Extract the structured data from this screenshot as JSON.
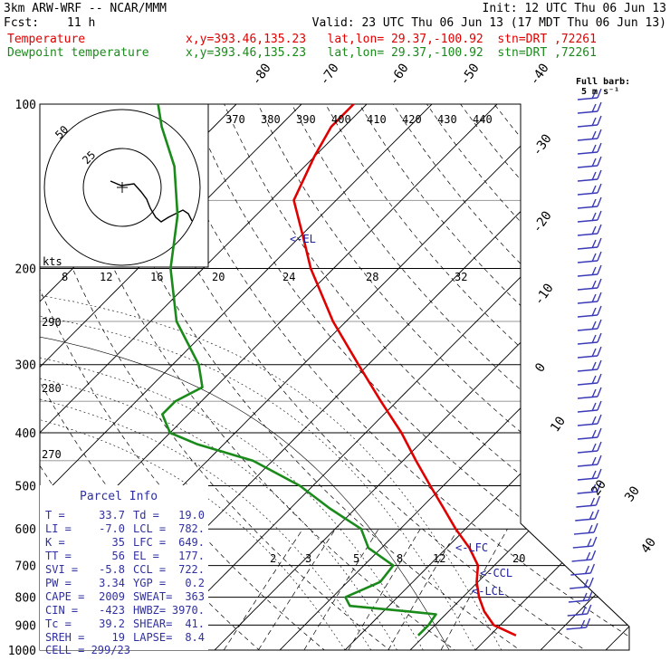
{
  "header": {
    "model": "3km ARW-WRF -- NCAR/MMM",
    "init": "Init: 12 UTC Thu 06 Jun 13",
    "fcst_label": "Fcst:",
    "fcst_value": "11 h",
    "valid": "Valid: 23 UTC Thu 06 Jun 13 (17 MDT Thu 06 Jun 13)",
    "temp_label": "Temperature",
    "temp_info": "x,y=393.46,135.23   lat,lon= 29.37,-100.92  stn=DRT ,72261",
    "dew_label": "Dewpoint temperature",
    "dew_info": "x,y=393.46,135.23   lat,lon= 29.37,-100.92  stn=DRT ,72261",
    "barb_label_1": "Full barb:",
    "barb_label_2": "5 m s⁻¹"
  },
  "colors": {
    "temperature": "#e00000",
    "dewpoint": "#1a8a1a",
    "parcel": "#000000",
    "barbs": "#3a3ab8",
    "el_label": "#2020a0"
  },
  "chart_data": {
    "type": "line",
    "subtype": "skew-T log-p",
    "yscale": "log",
    "ylim": [
      1000,
      100
    ],
    "isobars": [
      100,
      200,
      300,
      400,
      500,
      600,
      700,
      800,
      900,
      1000
    ],
    "isotherm_labels": [
      "-80",
      "-70",
      "-60",
      "-50",
      "-40",
      "-30",
      "-20",
      "-10",
      "0",
      "10",
      "20",
      "30",
      "40"
    ],
    "isotherm_values": [
      -80,
      -70,
      -60,
      -50,
      -40,
      -30,
      -20,
      -10,
      0,
      10,
      20,
      30,
      40
    ],
    "theta_labels": [
      "370",
      "380",
      "390",
      "400",
      "410",
      "420",
      "430",
      "440"
    ],
    "theta_side_labels": [
      "290",
      "280",
      "270"
    ],
    "mixing_ratio_labels": [
      "2",
      "3",
      "5",
      "8",
      "12",
      "20"
    ],
    "kts_scale_label": "kts",
    "kts_labels": [
      "8",
      "12",
      "16",
      "20",
      "24",
      "28",
      "32"
    ],
    "hodograph_rings": [
      "25",
      "50"
    ],
    "levels": [
      "EL",
      "LFC",
      "CCL",
      "LCL"
    ],
    "level_labels": {
      "EL": "<-EL",
      "LFC": "<-LFC",
      "CCL": "<-CCL",
      "LCL": "<-LCL"
    },
    "series": [
      {
        "name": "Temperature",
        "units": "C",
        "points": [
          [
            940,
            34.0
          ],
          [
            900,
            29.0
          ],
          [
            850,
            25.5
          ],
          [
            800,
            22.5
          ],
          [
            750,
            19.8
          ],
          [
            700,
            17.5
          ],
          [
            650,
            13.5
          ],
          [
            600,
            8.5
          ],
          [
            550,
            3.5
          ],
          [
            500,
            -2.0
          ],
          [
            450,
            -8.0
          ],
          [
            400,
            -14.5
          ],
          [
            350,
            -22.5
          ],
          [
            300,
            -31.5
          ],
          [
            250,
            -42.0
          ],
          [
            200,
            -53.5
          ],
          [
            175,
            -59.5
          ],
          [
            150,
            -66.5
          ],
          [
            125,
            -70.0
          ],
          [
            110,
            -72.0
          ],
          [
            100,
            -72.0
          ]
        ]
      },
      {
        "name": "Dewpoint temperature",
        "units": "C",
        "points": [
          [
            940,
            19.0
          ],
          [
            900,
            19.0
          ],
          [
            860,
            18.5
          ],
          [
            850,
            14.0
          ],
          [
            830,
            4.0
          ],
          [
            800,
            2.0
          ],
          [
            750,
            5.0
          ],
          [
            700,
            4.5
          ],
          [
            650,
            -2.0
          ],
          [
            600,
            -6.0
          ],
          [
            550,
            -14.0
          ],
          [
            500,
            -22.0
          ],
          [
            450,
            -33.0
          ],
          [
            420,
            -44.0
          ],
          [
            400,
            -50.0
          ],
          [
            370,
            -54.0
          ],
          [
            350,
            -54.0
          ],
          [
            330,
            -52.0
          ],
          [
            300,
            -56.0
          ],
          [
            250,
            -66.0
          ],
          [
            200,
            -75.0
          ],
          [
            160,
            -82.0
          ],
          [
            130,
            -90.0
          ],
          [
            110,
            -98.0
          ],
          [
            100,
            -102.0
          ]
        ]
      }
    ]
  },
  "parcel_info": {
    "title": "Parcel Info",
    "rows": [
      [
        "T   =",
        "33.7",
        "Td =",
        "19.0"
      ],
      [
        "LI  =",
        "-7.0",
        "LCL =",
        "782."
      ],
      [
        "K   =",
        "35",
        "LFC =",
        "649."
      ],
      [
        "TT  =",
        "56",
        "EL  =",
        "177."
      ],
      [
        "SVI =",
        "-5.8",
        "CCL =",
        "722."
      ],
      [
        "PW  =",
        "3.34",
        "YGP =",
        "0.2"
      ],
      [
        "CAPE =",
        "2009",
        "SWEAT=",
        "363"
      ],
      [
        "CIN  =",
        "-423",
        "HWBZ=",
        "3970."
      ],
      [
        "Tc  =",
        "39.2",
        "SHEAR=",
        "41."
      ],
      [
        "SREH =",
        "19",
        "LAPSE=",
        "8.4"
      ]
    ],
    "cell_label": "CELL =",
    "cell_value": "299/23"
  }
}
